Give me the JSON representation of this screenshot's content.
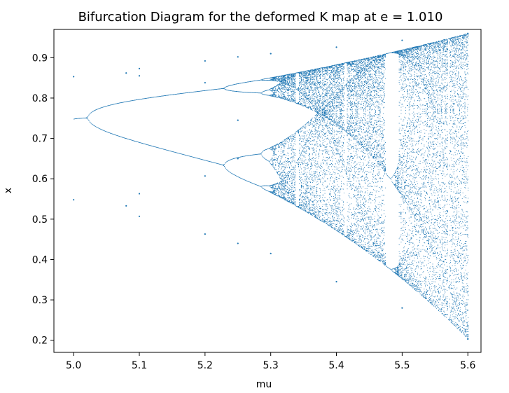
{
  "chart_data": {
    "type": "scatter",
    "title": "Bifurcation Diagram for the deformed K map at e = 1.010",
    "xlabel": "mu",
    "ylabel": "x",
    "xlim": [
      4.97,
      5.62
    ],
    "ylim": [
      0.17,
      0.97
    ],
    "xticks": [
      5.0,
      5.1,
      5.2,
      5.3,
      5.4,
      5.5,
      5.6
    ],
    "yticks": [
      0.2,
      0.3,
      0.4,
      0.5,
      0.6,
      0.7,
      0.8,
      0.9
    ],
    "grid": false,
    "legend": "none",
    "marker_color": "#1f77b4",
    "mu_range": [
      5.0,
      5.6
    ],
    "series": [
      {
        "values": [
          {
            "x": 5.0,
            "y": 0.853
          },
          {
            "x": 5.0,
            "y": 0.548
          },
          {
            "x": 5.08,
            "y": 0.862
          },
          {
            "x": 5.08,
            "y": 0.533
          },
          {
            "x": 5.1,
            "y": 0.873
          },
          {
            "x": 5.1,
            "y": 0.855
          },
          {
            "x": 5.1,
            "y": 0.563
          },
          {
            "x": 5.1,
            "y": 0.507
          },
          {
            "x": 5.2,
            "y": 0.892
          },
          {
            "x": 5.2,
            "y": 0.838
          },
          {
            "x": 5.2,
            "y": 0.607
          },
          {
            "x": 5.2,
            "y": 0.463
          },
          {
            "x": 5.25,
            "y": 0.902
          },
          {
            "x": 5.25,
            "y": 0.745
          },
          {
            "x": 5.25,
            "y": 0.65
          },
          {
            "x": 5.25,
            "y": 0.44
          },
          {
            "x": 5.3,
            "y": 0.91
          },
          {
            "x": 5.3,
            "y": 0.415
          },
          {
            "x": 5.4,
            "y": 0.926
          },
          {
            "x": 5.4,
            "y": 0.345
          },
          {
            "x": 5.5,
            "y": 0.943
          },
          {
            "x": 5.5,
            "y": 0.28
          },
          {
            "x": 5.6,
            "y": 0.96
          },
          {
            "x": 5.6,
            "y": 0.203
          }
        ]
      }
    ]
  }
}
